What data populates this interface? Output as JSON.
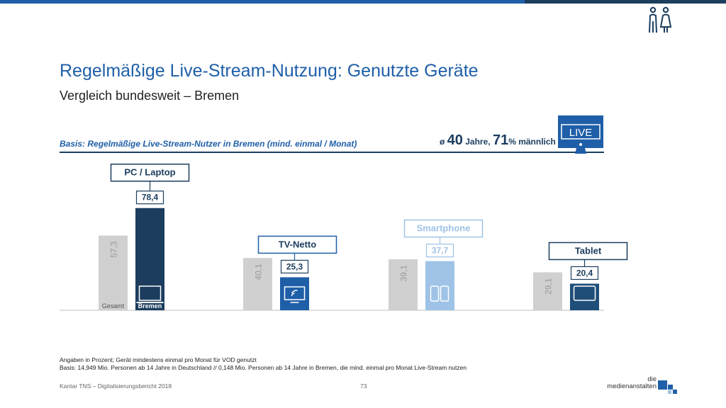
{
  "title": "Regelmäßige Live-Stream-Nutzung: Genutzte Geräte",
  "subtitle": "Vergleich bundesweit – Bremen",
  "basis": "Basis: Regelmäßige Live-Stream-Nutzer in Bremen (mind. einmal / Monat)",
  "stats": {
    "prefix": "ø ",
    "age": "40",
    "age_unit": " Jahre, ",
    "male": "71",
    "male_unit": "% männlich"
  },
  "live_label": "LIVE",
  "chart_data": {
    "type": "bar",
    "categories": [
      "PC / Laptop",
      "TV-Netto",
      "Smartphone",
      "Tablet"
    ],
    "series": [
      {
        "name": "Gesamt",
        "values": [
          57.3,
          40.1,
          39.1,
          29.1
        ],
        "labels": [
          "57,3",
          "40,1",
          "39,1",
          "29,1"
        ]
      },
      {
        "name": "Bremen",
        "values": [
          78.4,
          25.3,
          37.7,
          20.4
        ],
        "labels": [
          "78,4",
          "25,3",
          "37,7",
          "20,4"
        ]
      }
    ],
    "series_labels_shown": [
      "Gesamt",
      "Bremen"
    ],
    "colors": {
      "gesamt": "#d0d0d0",
      "bremen": [
        "#1c3d5e",
        "#1f5fa8",
        "#9ec3e6",
        "#1f4e79"
      ]
    },
    "category_icons": [
      "laptop-icon",
      "tv-icon",
      "smartphone-icon",
      "tablet-icon"
    ],
    "ylim": [
      0,
      100
    ]
  },
  "footnotes": [
    "Angaben in Prozent; Gerät mindestens einmal pro Monat für VOD genutzt",
    "Basis: 14,949 Mio. Personen ab 14 Jahre in Deutschland // 0,148 Mio. Personen ab 14 Jahre in Bremen, die mind. einmal pro Monat Live-Stream nutzen"
  ],
  "footer": {
    "source": "Kantar TNS – Digitalisierungsbericht 2018",
    "page": "73"
  },
  "logo": {
    "line1": "die",
    "line2": "medienanstalten"
  },
  "header_icon": "people-icon"
}
